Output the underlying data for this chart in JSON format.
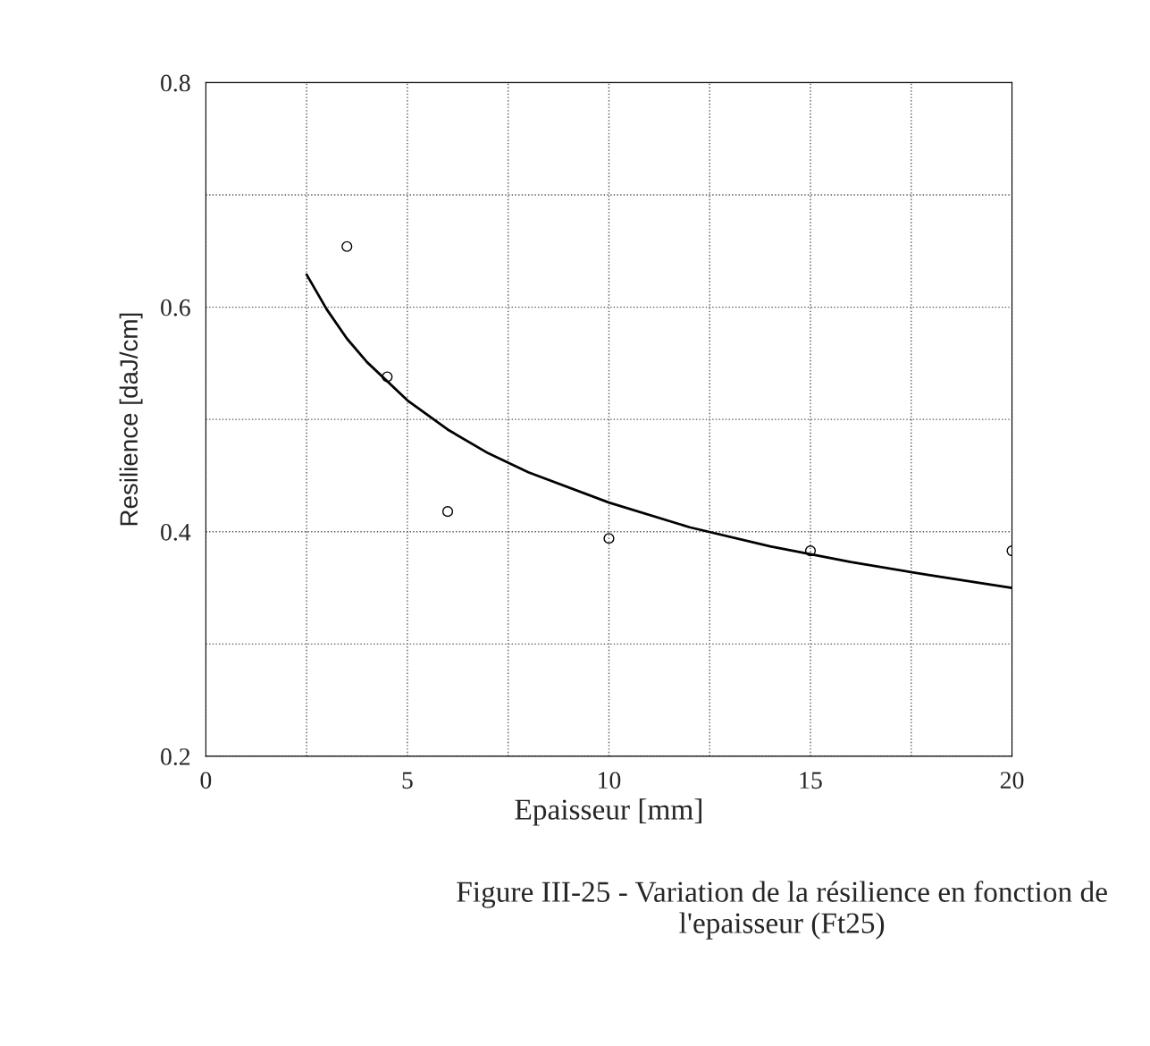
{
  "chart_data": {
    "type": "scatter",
    "xlabel": "Epaisseur [mm]",
    "ylabel": "Resilience [daJ/cm]",
    "xlim": [
      0,
      20
    ],
    "ylim": [
      0.2,
      0.8
    ],
    "xticks": [
      0,
      {
        "value": 2.5,
        "label": null
      },
      5,
      {
        "value": 7.5,
        "label": null
      },
      10,
      {
        "value": 12.5,
        "label": null
      },
      15,
      {
        "value": 17.5,
        "label": null
      },
      20
    ],
    "yticks": [
      0.2,
      {
        "value": 0.3,
        "label": null
      },
      0.4,
      {
        "value": 0.5,
        "label": null
      },
      0.6,
      {
        "value": 0.7,
        "label": null
      },
      0.8
    ],
    "grid": true,
    "marker": "circle",
    "series": [
      {
        "color": "#000000",
        "x": [
          3.5,
          4.5,
          6,
          10,
          15,
          20
        ],
        "values": [
          0.654,
          0.538,
          0.418,
          0.394,
          0.383,
          0.383
        ]
      },
      {
        "type": "line",
        "color": "#000000",
        "marker": "none",
        "line_style": "solid",
        "x": [
          2.5,
          3,
          3.5,
          4,
          5,
          6,
          7,
          8,
          10,
          12,
          14,
          16,
          18,
          20
        ],
        "values": [
          0.629,
          0.598,
          0.572,
          0.551,
          0.517,
          0.491,
          0.47,
          0.453,
          0.426,
          0.404,
          0.387,
          0.373,
          0.361,
          0.35
        ]
      }
    ],
    "annotations": [
      "Figure III-25 - Variation de la résilience en fonction de l'epaisseur (Ft25)"
    ]
  }
}
